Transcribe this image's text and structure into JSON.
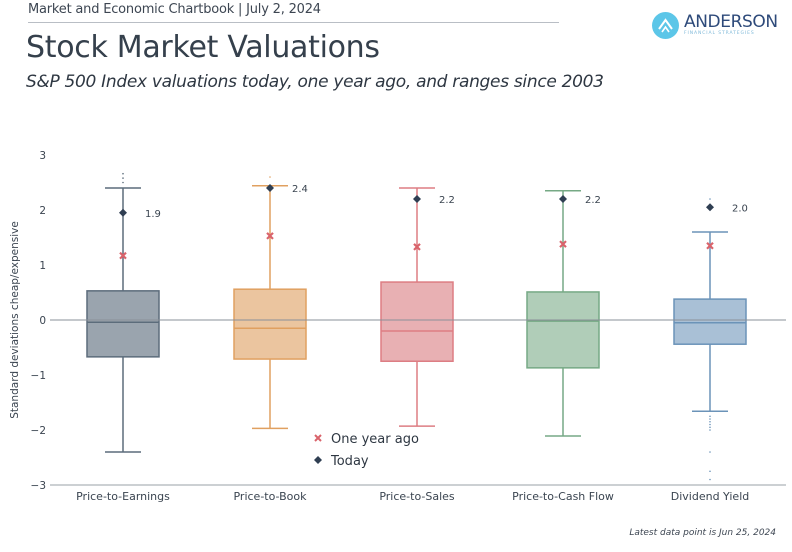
{
  "header": {
    "chartbook": "Market and Economic Chartbook | July 2, 2024",
    "title": "Stock Market Valuations",
    "subtitle": "S&P 500 Index valuations today, one year ago, and ranges since 2003"
  },
  "logo": {
    "name": "ANDERSON",
    "tagline": "FINANCIAL STRATEGIES",
    "icon": "chevron-up-icon",
    "color": "#5cc6e8"
  },
  "footnote": "Latest data point is Jun 25, 2024",
  "chart_data": {
    "type": "boxplot",
    "title": "Stock Market Valuations",
    "ylabel": "Standard deviations cheap/expensive",
    "xlabel": "",
    "ylim": [
      -3,
      3
    ],
    "yticks": [
      3,
      2,
      1,
      0,
      -1,
      -2,
      -3
    ],
    "ytick_labels": [
      "3",
      "2",
      "1",
      "0",
      "−1",
      "−2",
      "−3"
    ],
    "grid": false,
    "zero_line": true,
    "legend": {
      "placement": "bottom-center",
      "entries": [
        {
          "name": "One year ago",
          "marker": "x",
          "color": "#d9636b"
        },
        {
          "name": "Today",
          "marker": "diamond",
          "color": "#2f3e52"
        }
      ]
    },
    "categories": [
      "Price-to-Earnings",
      "Price-to-Book",
      "Price-to-Sales",
      "Price-to-Cash Flow",
      "Dividend Yield"
    ],
    "series": [
      {
        "name": "Price-to-Earnings",
        "color": "#5c6c7b",
        "fill": "#9aa4ae",
        "whisker_low": -2.4,
        "q1": -0.67,
        "median": -0.04,
        "q3": 0.53,
        "whisker_high": 2.4,
        "today": 1.95,
        "today_label": "1.9",
        "one_year_ago": 1.17,
        "outliers": [
          2.5,
          2.58,
          2.66
        ]
      },
      {
        "name": "Price-to-Book",
        "color": "#e0a060",
        "fill": "#ebc59f",
        "whisker_low": -1.97,
        "q1": -0.71,
        "median": -0.15,
        "q3": 0.56,
        "whisker_high": 2.44,
        "today": 2.4,
        "today_label": "2.4",
        "one_year_ago": 1.53,
        "outliers": [
          2.6
        ]
      },
      {
        "name": "Price-to-Sales",
        "color": "#dd7d83",
        "fill": "#e8b0b3",
        "whisker_low": -1.93,
        "q1": -0.75,
        "median": -0.2,
        "q3": 0.69,
        "whisker_high": 2.4,
        "today": 2.2,
        "today_label": "2.2",
        "one_year_ago": 1.33,
        "outliers": []
      },
      {
        "name": "Price-to-Cash Flow",
        "color": "#76a985",
        "fill": "#b0cdb8",
        "whisker_low": -2.11,
        "q1": -0.87,
        "median": -0.02,
        "q3": 0.51,
        "whisker_high": 2.35,
        "today": 2.2,
        "today_label": "2.2",
        "one_year_ago": 1.38,
        "outliers": []
      },
      {
        "name": "Dividend Yield",
        "color": "#6b93b8",
        "fill": "#a9c0d6",
        "whisker_low": -1.66,
        "q1": -0.44,
        "median": -0.05,
        "q3": 0.38,
        "whisker_high": 1.6,
        "today": 2.05,
        "today_label": "2.0",
        "one_year_ago": 1.35,
        "outliers": [
          2.2,
          -1.75,
          -1.8,
          -1.85,
          -1.9,
          -1.95,
          -2.0,
          -2.4,
          -2.75,
          -2.9
        ]
      }
    ]
  }
}
